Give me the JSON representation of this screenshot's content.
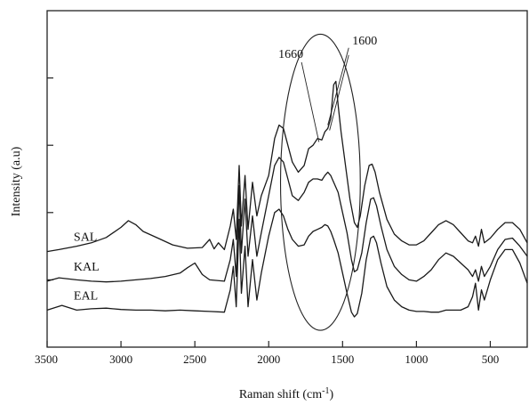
{
  "chart_data": {
    "type": "line",
    "title": "",
    "xlabel": "Raman shift (cm",
    "xlabel_sup": "-1",
    "xlabel_close": ")",
    "ylabel": "Intensity (a.u)",
    "xlim": [
      3500,
      250
    ],
    "ylim": [
      0,
      5
    ],
    "x_reversed": true,
    "grid": false,
    "y_tick_labels_shown": false,
    "x_ticks": [
      3500,
      3000,
      2500,
      2000,
      1500,
      1000,
      500
    ],
    "x_tick_labels": [
      "3500",
      "3000",
      "2500",
      "2000",
      "1500",
      "1000",
      "500"
    ],
    "y_ticks": [
      1,
      2,
      3,
      4
    ],
    "series": [
      {
        "name": "SAL",
        "points": [
          [
            3500,
            1.42
          ],
          [
            3420,
            1.45
          ],
          [
            3300,
            1.5
          ],
          [
            3200,
            1.55
          ],
          [
            3100,
            1.63
          ],
          [
            3000,
            1.78
          ],
          [
            2950,
            1.88
          ],
          [
            2900,
            1.82
          ],
          [
            2850,
            1.72
          ],
          [
            2750,
            1.62
          ],
          [
            2650,
            1.52
          ],
          [
            2550,
            1.47
          ],
          [
            2450,
            1.48
          ],
          [
            2400,
            1.6
          ],
          [
            2370,
            1.46
          ],
          [
            2340,
            1.55
          ],
          [
            2300,
            1.45
          ],
          [
            2260,
            1.8
          ],
          [
            2240,
            2.05
          ],
          [
            2220,
            1.6
          ],
          [
            2200,
            2.7
          ],
          [
            2185,
            1.8
          ],
          [
            2160,
            2.55
          ],
          [
            2140,
            1.75
          ],
          [
            2110,
            2.45
          ],
          [
            2080,
            1.95
          ],
          [
            2050,
            2.25
          ],
          [
            2000,
            2.55
          ],
          [
            1960,
            3.1
          ],
          [
            1930,
            3.3
          ],
          [
            1900,
            3.25
          ],
          [
            1870,
            3.0
          ],
          [
            1840,
            2.75
          ],
          [
            1800,
            2.6
          ],
          [
            1760,
            2.7
          ],
          [
            1730,
            2.95
          ],
          [
            1700,
            3.0
          ],
          [
            1670,
            3.1
          ],
          [
            1640,
            3.08
          ],
          [
            1620,
            3.2
          ],
          [
            1600,
            3.25
          ],
          [
            1580,
            3.4
          ],
          [
            1560,
            3.9
          ],
          [
            1545,
            3.95
          ],
          [
            1530,
            3.6
          ],
          [
            1510,
            3.2
          ],
          [
            1480,
            2.7
          ],
          [
            1450,
            2.2
          ],
          [
            1420,
            1.85
          ],
          [
            1400,
            1.78
          ],
          [
            1380,
            1.95
          ],
          [
            1350,
            2.4
          ],
          [
            1320,
            2.7
          ],
          [
            1300,
            2.72
          ],
          [
            1280,
            2.6
          ],
          [
            1250,
            2.3
          ],
          [
            1200,
            1.9
          ],
          [
            1150,
            1.68
          ],
          [
            1100,
            1.58
          ],
          [
            1050,
            1.52
          ],
          [
            1000,
            1.52
          ],
          [
            950,
            1.58
          ],
          [
            900,
            1.7
          ],
          [
            850,
            1.82
          ],
          [
            800,
            1.88
          ],
          [
            750,
            1.82
          ],
          [
            700,
            1.7
          ],
          [
            650,
            1.58
          ],
          [
            620,
            1.55
          ],
          [
            600,
            1.65
          ],
          [
            580,
            1.5
          ],
          [
            560,
            1.75
          ],
          [
            540,
            1.55
          ],
          [
            500,
            1.62
          ],
          [
            450,
            1.75
          ],
          [
            400,
            1.85
          ],
          [
            350,
            1.85
          ],
          [
            300,
            1.75
          ],
          [
            250,
            1.55
          ]
        ]
      },
      {
        "name": "KAL",
        "points": [
          [
            3500,
            0.98
          ],
          [
            3420,
            1.03
          ],
          [
            3300,
            1.0
          ],
          [
            3200,
            0.98
          ],
          [
            3100,
            0.97
          ],
          [
            3000,
            0.98
          ],
          [
            2900,
            1.0
          ],
          [
            2800,
            1.02
          ],
          [
            2700,
            1.05
          ],
          [
            2600,
            1.1
          ],
          [
            2550,
            1.18
          ],
          [
            2500,
            1.25
          ],
          [
            2450,
            1.08
          ],
          [
            2400,
            1.0
          ],
          [
            2300,
            0.98
          ],
          [
            2260,
            1.3
          ],
          [
            2240,
            1.6
          ],
          [
            2220,
            1.05
          ],
          [
            2200,
            2.4
          ],
          [
            2185,
            1.4
          ],
          [
            2160,
            2.2
          ],
          [
            2140,
            1.35
          ],
          [
            2110,
            1.95
          ],
          [
            2080,
            1.35
          ],
          [
            2050,
            1.7
          ],
          [
            2000,
            2.25
          ],
          [
            1960,
            2.7
          ],
          [
            1930,
            2.82
          ],
          [
            1900,
            2.75
          ],
          [
            1870,
            2.5
          ],
          [
            1840,
            2.25
          ],
          [
            1800,
            2.18
          ],
          [
            1760,
            2.3
          ],
          [
            1730,
            2.45
          ],
          [
            1700,
            2.5
          ],
          [
            1670,
            2.5
          ],
          [
            1640,
            2.48
          ],
          [
            1620,
            2.55
          ],
          [
            1600,
            2.6
          ],
          [
            1580,
            2.55
          ],
          [
            1560,
            2.45
          ],
          [
            1530,
            2.3
          ],
          [
            1500,
            2.0
          ],
          [
            1470,
            1.7
          ],
          [
            1440,
            1.3
          ],
          [
            1420,
            1.12
          ],
          [
            1400,
            1.15
          ],
          [
            1370,
            1.4
          ],
          [
            1340,
            1.85
          ],
          [
            1310,
            2.2
          ],
          [
            1290,
            2.22
          ],
          [
            1270,
            2.1
          ],
          [
            1240,
            1.8
          ],
          [
            1200,
            1.45
          ],
          [
            1150,
            1.2
          ],
          [
            1100,
            1.08
          ],
          [
            1050,
            1.0
          ],
          [
            1000,
            0.98
          ],
          [
            950,
            1.05
          ],
          [
            900,
            1.15
          ],
          [
            850,
            1.3
          ],
          [
            800,
            1.4
          ],
          [
            750,
            1.35
          ],
          [
            700,
            1.25
          ],
          [
            650,
            1.15
          ],
          [
            620,
            1.05
          ],
          [
            600,
            1.15
          ],
          [
            580,
            0.98
          ],
          [
            560,
            1.2
          ],
          [
            540,
            1.05
          ],
          [
            500,
            1.2
          ],
          [
            450,
            1.45
          ],
          [
            400,
            1.6
          ],
          [
            350,
            1.62
          ],
          [
            300,
            1.5
          ],
          [
            250,
            1.35
          ]
        ]
      },
      {
        "name": "EAL",
        "points": [
          [
            3500,
            0.55
          ],
          [
            3400,
            0.62
          ],
          [
            3300,
            0.55
          ],
          [
            3200,
            0.57
          ],
          [
            3100,
            0.58
          ],
          [
            3000,
            0.56
          ],
          [
            2900,
            0.55
          ],
          [
            2800,
            0.55
          ],
          [
            2700,
            0.54
          ],
          [
            2600,
            0.55
          ],
          [
            2500,
            0.54
          ],
          [
            2400,
            0.53
          ],
          [
            2300,
            0.52
          ],
          [
            2260,
            0.85
          ],
          [
            2240,
            1.2
          ],
          [
            2220,
            0.6
          ],
          [
            2200,
            1.9
          ],
          [
            2185,
            0.8
          ],
          [
            2160,
            1.5
          ],
          [
            2140,
            0.6
          ],
          [
            2110,
            1.3
          ],
          [
            2080,
            0.7
          ],
          [
            2050,
            1.1
          ],
          [
            2000,
            1.65
          ],
          [
            1960,
            2.0
          ],
          [
            1930,
            2.05
          ],
          [
            1900,
            1.95
          ],
          [
            1870,
            1.75
          ],
          [
            1840,
            1.6
          ],
          [
            1800,
            1.5
          ],
          [
            1760,
            1.52
          ],
          [
            1730,
            1.65
          ],
          [
            1700,
            1.72
          ],
          [
            1670,
            1.75
          ],
          [
            1640,
            1.78
          ],
          [
            1620,
            1.82
          ],
          [
            1600,
            1.8
          ],
          [
            1580,
            1.72
          ],
          [
            1560,
            1.6
          ],
          [
            1530,
            1.4
          ],
          [
            1500,
            1.1
          ],
          [
            1470,
            0.8
          ],
          [
            1440,
            0.52
          ],
          [
            1420,
            0.45
          ],
          [
            1400,
            0.5
          ],
          [
            1370,
            0.8
          ],
          [
            1340,
            1.3
          ],
          [
            1310,
            1.62
          ],
          [
            1290,
            1.65
          ],
          [
            1270,
            1.55
          ],
          [
            1240,
            1.25
          ],
          [
            1200,
            0.9
          ],
          [
            1150,
            0.7
          ],
          [
            1100,
            0.6
          ],
          [
            1050,
            0.55
          ],
          [
            1000,
            0.53
          ],
          [
            950,
            0.53
          ],
          [
            900,
            0.52
          ],
          [
            850,
            0.52
          ],
          [
            800,
            0.55
          ],
          [
            750,
            0.55
          ],
          [
            700,
            0.55
          ],
          [
            650,
            0.6
          ],
          [
            620,
            0.75
          ],
          [
            600,
            0.95
          ],
          [
            580,
            0.55
          ],
          [
            560,
            0.85
          ],
          [
            540,
            0.7
          ],
          [
            500,
            1.0
          ],
          [
            450,
            1.3
          ],
          [
            400,
            1.45
          ],
          [
            350,
            1.45
          ],
          [
            300,
            1.25
          ],
          [
            250,
            0.95
          ]
        ]
      }
    ],
    "annotations": [
      {
        "text": "1660",
        "x": 1660,
        "y": 3.05
      },
      {
        "text": "1600",
        "x": 1600,
        "y": 3.3
      }
    ],
    "highlight_ellipse": {
      "x_center": 1650,
      "y_center": 2.45,
      "x_half_width": 270,
      "y_half_height": 2.2
    }
  }
}
